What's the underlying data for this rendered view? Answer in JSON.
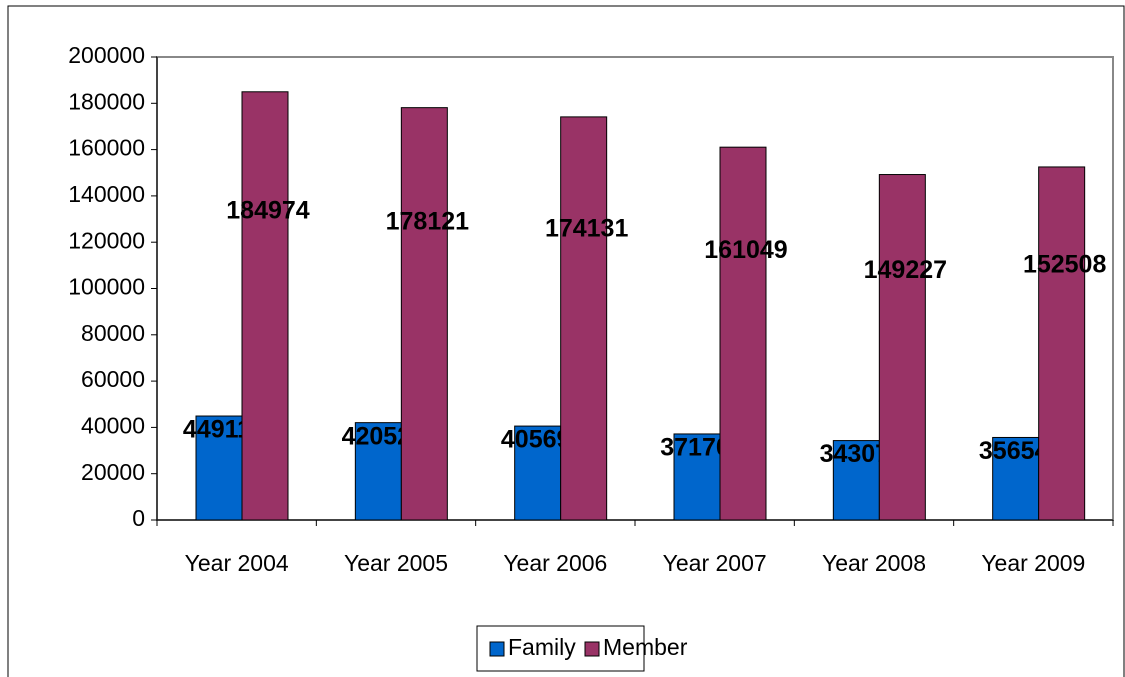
{
  "chart_data": {
    "type": "bar",
    "categories": [
      "Year 2004",
      "Year 2005",
      "Year 2006",
      "Year 2007",
      "Year 2008",
      "Year 2009"
    ],
    "series": [
      {
        "name": "Family",
        "color": "#0066cc",
        "values": [
          44911,
          42052,
          40569,
          37170,
          34307,
          35654
        ]
      },
      {
        "name": "Member",
        "color": "#993366",
        "values": [
          184974,
          178121,
          174131,
          161049,
          149227,
          152508
        ]
      }
    ],
    "ylim": [
      0,
      200000
    ],
    "yticks": [
      0,
      20000,
      40000,
      60000,
      80000,
      100000,
      120000,
      140000,
      160000,
      180000,
      200000
    ],
    "grid": false,
    "legend": "bottom"
  }
}
